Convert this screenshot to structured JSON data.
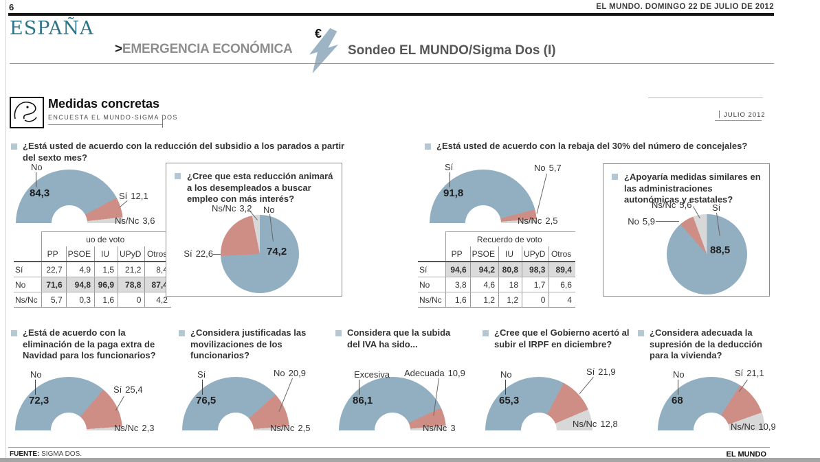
{
  "page": {
    "number": "6",
    "masthead": "EL MUNDO. DOMINGO 22 DE JULIO DE 2012",
    "section": "ESPAÑA",
    "kicker_arrow": ">",
    "kicker": "EMERGENCIA ECONÓMICA",
    "euro": "€",
    "headline": "Sondeo EL MUNDO/Sigma Dos (I)",
    "footer": {
      "source_label": "FUENTE:",
      "source": "SIGMA DOS.",
      "brand": "EL MUNDO"
    }
  },
  "infographic": {
    "title": "Medidas concretas",
    "subtitle": "ENCUESTA EL MUNDO-SIGMA DOS",
    "date": "JULIO 2012"
  },
  "colors": {
    "blue": "#92AEC1",
    "salmon": "#CE8E85",
    "gray": "#D8D8D8",
    "teal": "#2E7488",
    "emph_bg": "#DBDBDB",
    "bolt": "#9DB4C5"
  },
  "chart_data": [
    {
      "id": "subsidio",
      "type": "donut-half",
      "title": "¿Está usted de acuerdo con la reducción del subsidio a los parados a partir del sexto mes?",
      "segments": [
        {
          "label": "No",
          "value": 84.3,
          "display": "84,3",
          "color": "blue"
        },
        {
          "label": "Sí",
          "value": 12.1,
          "display": "12,1",
          "color": "salmon"
        },
        {
          "label": "Ns/Nc",
          "value": 3.6,
          "display": "3,6",
          "color": "gray"
        }
      ]
    },
    {
      "id": "subsidio_voto",
      "type": "table",
      "title": "uo de voto",
      "columns": [
        "PP",
        "PSOE",
        "IU",
        "UPyD",
        "Otros"
      ],
      "rows": [
        {
          "label": "Sí",
          "values": [
            "22,7",
            "4,9",
            "1,5",
            "21,2",
            "8,4"
          ],
          "emphasis": false
        },
        {
          "label": "No",
          "values": [
            "71,6",
            "94,8",
            "96,9",
            "78,8",
            "87,4"
          ],
          "emphasis": true
        },
        {
          "label": "Ns/Nc",
          "values": [
            "5,7",
            "0,3",
            "1,6",
            "0",
            "4,2"
          ],
          "emphasis": false
        }
      ]
    },
    {
      "id": "animara",
      "type": "pie",
      "title": "¿Cree que esta reducción animará a los desempleados a buscar empleo con más interés?",
      "segments": [
        {
          "label": "No",
          "value": 74.2,
          "display": "74,2",
          "color": "blue"
        },
        {
          "label": "Sí",
          "value": 22.6,
          "display": "22,6",
          "color": "salmon"
        },
        {
          "label": "Ns/Nc",
          "value": 3.2,
          "display": "3,2",
          "color": "gray"
        }
      ]
    },
    {
      "id": "concejales",
      "type": "donut-half",
      "title": "¿Está usted de acuerdo con la rebaja del 30% del número de concejales?",
      "segments": [
        {
          "label": "Sí",
          "value": 91.8,
          "display": "91,8",
          "color": "blue"
        },
        {
          "label": "No",
          "value": 5.7,
          "display": "5,7",
          "color": "salmon"
        },
        {
          "label": "Ns/Nc",
          "value": 2.5,
          "display": "2,5",
          "color": "gray"
        }
      ]
    },
    {
      "id": "concejales_voto",
      "type": "table",
      "title": "Recuerdo de voto",
      "columns": [
        "PP",
        "PSOE",
        "IU",
        "UPyD",
        "Otros"
      ],
      "rows": [
        {
          "label": "Sí",
          "values": [
            "94,6",
            "94,2",
            "80,8",
            "98,3",
            "89,4"
          ],
          "emphasis": true
        },
        {
          "label": "No",
          "values": [
            "3,8",
            "4,6",
            "18",
            "1,7",
            "6,6"
          ],
          "emphasis": false
        },
        {
          "label": "Ns/Nc",
          "values": [
            "1,6",
            "1,2",
            "1,2",
            "0",
            "4"
          ],
          "emphasis": false
        }
      ]
    },
    {
      "id": "similares",
      "type": "pie",
      "title": "¿Apoyaría medidas similares en las administraciones autonómicas y estatales?",
      "segments": [
        {
          "label": "Sí",
          "value": 88.5,
          "display": "88,5",
          "color": "blue"
        },
        {
          "label": "No",
          "value": 5.9,
          "display": "5,9",
          "color": "salmon"
        },
        {
          "label": "Ns/Nc",
          "value": 5.6,
          "display": "5,6",
          "color": "gray"
        }
      ]
    },
    {
      "id": "paga_extra",
      "type": "donut-half",
      "title": "¿Está de acuerdo con la eliminación de la paga extra de Navidad para los funcionarios?",
      "segments": [
        {
          "label": "No",
          "value": 72.3,
          "display": "72,3",
          "color": "blue"
        },
        {
          "label": "Sí",
          "value": 25.4,
          "display": "25,4",
          "color": "salmon"
        },
        {
          "label": "Ns/Nc",
          "value": 2.3,
          "display": "2,3",
          "color": "gray"
        }
      ]
    },
    {
      "id": "movilizaciones",
      "type": "donut-half",
      "title": "¿Considera justificadas las movilizaciones de los funcionarios?",
      "segments": [
        {
          "label": "Sí",
          "value": 76.5,
          "display": "76,5",
          "color": "blue"
        },
        {
          "label": "No",
          "value": 20.9,
          "display": "20,9",
          "color": "salmon"
        },
        {
          "label": "Ns/Nc",
          "value": 2.5,
          "display": "2,5",
          "color": "gray"
        }
      ]
    },
    {
      "id": "iva",
      "type": "donut-half",
      "title": "Considera que la subida del IVA ha sido...",
      "segments": [
        {
          "label": "Excesiva",
          "value": 86.1,
          "display": "86,1",
          "color": "blue"
        },
        {
          "label": "Adecuada",
          "value": 10.9,
          "display": "10,9",
          "color": "salmon"
        },
        {
          "label": "Ns/Nc",
          "value": 3,
          "display": "3",
          "color": "gray"
        }
      ]
    },
    {
      "id": "irpf",
      "type": "donut-half",
      "title": "¿Cree que el Gobierno acertó al subir el IRPF en diciembre?",
      "segments": [
        {
          "label": "No",
          "value": 65.3,
          "display": "65,3",
          "color": "blue"
        },
        {
          "label": "Sí",
          "value": 21.9,
          "display": "21,9",
          "color": "salmon"
        },
        {
          "label": "Ns/Nc",
          "value": 12.8,
          "display": "12,8",
          "color": "gray"
        }
      ]
    },
    {
      "id": "vivienda",
      "type": "donut-half",
      "title": "¿Considera adecuada la supresión de la deducción para la vivienda?",
      "segments": [
        {
          "label": "No",
          "value": 68,
          "display": "68",
          "color": "blue"
        },
        {
          "label": "Sí",
          "value": 21.1,
          "display": "21,1",
          "color": "salmon"
        },
        {
          "label": "Ns/Nc",
          "value": 10.9,
          "display": "10,9",
          "color": "gray"
        }
      ]
    }
  ]
}
